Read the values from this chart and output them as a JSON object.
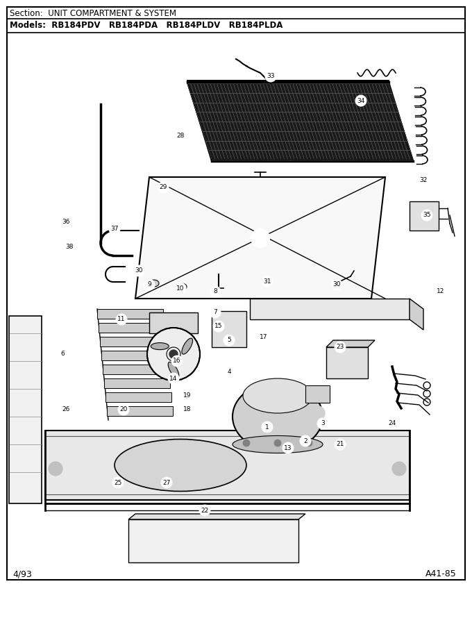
{
  "title_section": "Section:  UNIT COMPARTMENT & SYSTEM",
  "title_models": "Models:  RB184PDV   RB184PDA   RB184PLDV   RB184PLDA",
  "footer_left": "4/93",
  "footer_right": "A41-85",
  "bg_color": "#ffffff",
  "fig_width": 6.8,
  "fig_height": 8.9,
  "dpi": 100,
  "callouts": [
    [
      390,
      110,
      "33"
    ],
    [
      520,
      145,
      "34"
    ],
    [
      610,
      260,
      "32"
    ],
    [
      615,
      310,
      "35"
    ],
    [
      260,
      195,
      "28"
    ],
    [
      235,
      270,
      "29"
    ],
    [
      95,
      320,
      "36"
    ],
    [
      165,
      330,
      "37"
    ],
    [
      100,
      355,
      "38"
    ],
    [
      200,
      390,
      "30"
    ],
    [
      215,
      410,
      "9"
    ],
    [
      260,
      415,
      "10"
    ],
    [
      310,
      420,
      "8"
    ],
    [
      385,
      405,
      "31"
    ],
    [
      485,
      410,
      "30"
    ],
    [
      635,
      420,
      "12"
    ],
    [
      310,
      450,
      "7"
    ],
    [
      315,
      470,
      "15"
    ],
    [
      330,
      490,
      "5"
    ],
    [
      380,
      485,
      "17"
    ],
    [
      175,
      460,
      "11"
    ],
    [
      90,
      510,
      "6"
    ],
    [
      255,
      520,
      "16"
    ],
    [
      250,
      545,
      "14"
    ],
    [
      330,
      535,
      "4"
    ],
    [
      490,
      500,
      "23"
    ],
    [
      270,
      570,
      "19"
    ],
    [
      270,
      590,
      "18"
    ],
    [
      95,
      590,
      "26"
    ],
    [
      178,
      590,
      "20"
    ],
    [
      385,
      615,
      "1"
    ],
    [
      415,
      645,
      "13"
    ],
    [
      440,
      635,
      "2"
    ],
    [
      465,
      610,
      "3"
    ],
    [
      490,
      640,
      "21"
    ],
    [
      565,
      610,
      "24"
    ],
    [
      170,
      695,
      "25"
    ],
    [
      240,
      695,
      "27"
    ],
    [
      295,
      735,
      "22"
    ]
  ]
}
